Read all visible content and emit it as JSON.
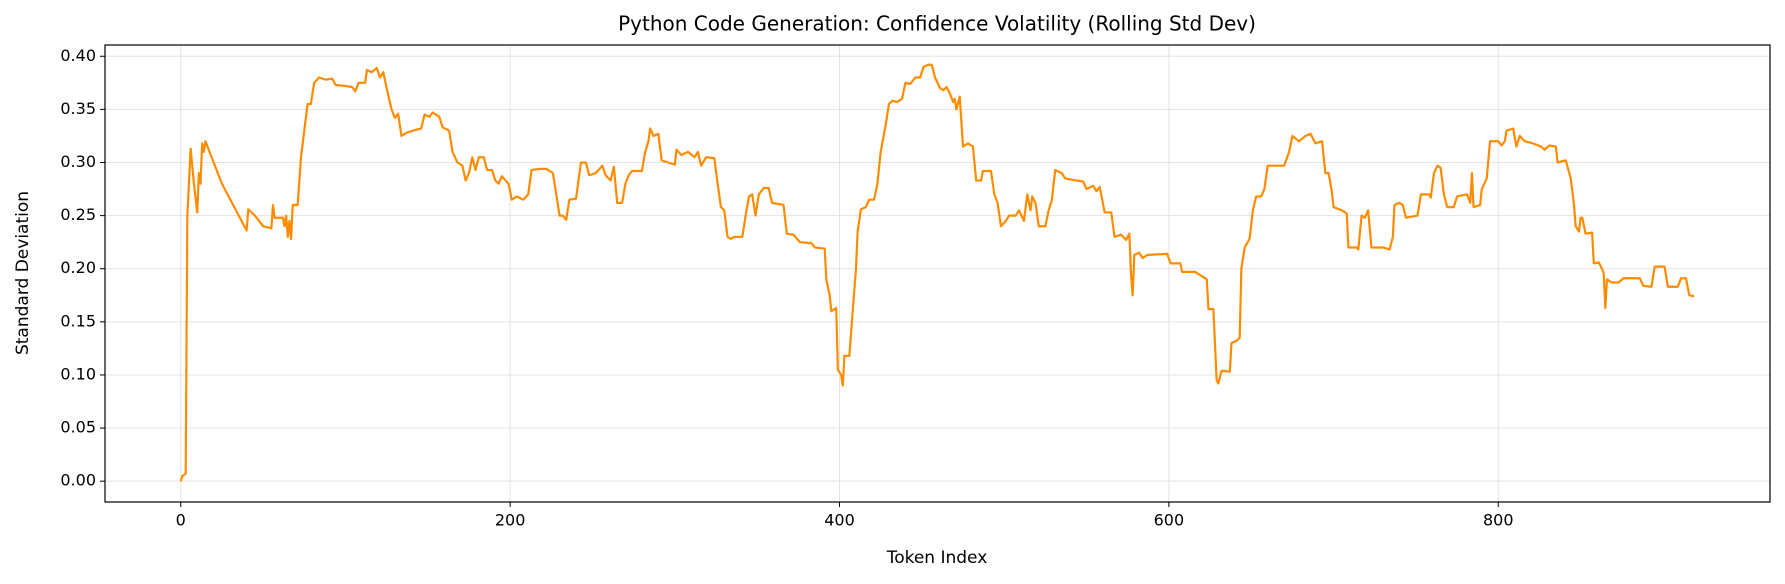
{
  "chart_data": {
    "type": "line",
    "title": "Python Code Generation: Confidence Volatility (Rolling Std Dev)",
    "x_label": "Token Index",
    "y_label": "Standard Deviation",
    "xlim": [
      -46,
      965
    ],
    "ylim": [
      -0.0196,
      0.4106
    ],
    "xticks": [
      0,
      200,
      400,
      600,
      800
    ],
    "yticks": [
      {
        "value": 0,
        "label": "0.00"
      },
      {
        "value": 0.05,
        "label": "0.05"
      },
      {
        "value": 0.1,
        "label": "0.10"
      },
      {
        "value": 0.15,
        "label": "0.15"
      },
      {
        "value": 0.2,
        "label": "0.20"
      },
      {
        "value": 0.25,
        "label": "0.25"
      },
      {
        "value": 0.3,
        "label": "0.30"
      },
      {
        "value": 0.35,
        "label": "0.35"
      },
      {
        "value": 0.4,
        "label": "0.40"
      }
    ],
    "grid": true,
    "x": [
      0,
      1,
      3,
      4,
      6,
      8,
      10,
      11,
      12,
      13,
      14,
      15,
      20,
      25,
      40,
      41,
      45,
      50,
      55,
      56,
      57,
      62,
      63,
      64,
      65,
      66,
      67,
      68,
      71,
      73,
      75,
      77,
      79,
      81,
      84,
      88,
      92,
      94,
      100,
      104,
      106,
      108,
      112,
      113,
      116,
      119,
      121,
      123,
      125,
      128,
      130,
      132,
      134,
      137,
      141,
      146,
      148,
      151,
      153,
      157,
      159,
      163,
      165,
      168,
      171,
      173,
      175,
      177,
      179,
      181,
      184,
      186,
      189,
      191,
      193,
      195,
      199,
      201,
      204,
      208,
      211,
      213,
      218,
      222,
      226,
      228,
      230,
      232,
      234,
      236,
      240,
      243,
      246,
      248,
      252,
      256,
      258,
      261,
      263,
      265,
      268,
      270,
      272,
      274,
      280,
      282,
      284,
      285,
      287,
      290,
      292,
      296,
      300,
      301,
      304,
      308,
      312,
      314,
      316,
      319,
      324,
      326,
      328,
      330,
      332,
      334,
      336,
      341,
      343,
      345,
      347,
      349,
      351,
      354,
      357,
      359,
      366,
      368,
      372,
      376,
      383,
      385,
      391,
      392,
      394,
      395,
      398,
      399,
      401,
      402,
      403,
      406,
      408,
      410,
      411,
      413,
      416,
      418,
      421,
      423,
      425,
      428,
      430,
      432,
      435,
      438,
      440,
      443,
      446,
      449,
      451,
      454,
      456,
      458,
      461,
      463,
      465,
      467,
      469,
      470,
      471,
      473,
      475,
      478,
      481,
      483,
      486,
      487,
      492,
      494,
      496,
      498,
      501,
      503,
      507,
      509,
      512,
      514,
      516,
      517,
      519,
      521,
      525,
      527,
      529,
      530,
      531,
      535,
      537,
      544,
      548,
      550,
      554,
      556,
      558,
      561,
      565,
      567,
      571,
      574,
      576,
      577,
      578,
      579,
      582,
      584,
      587,
      599,
      601,
      607,
      608,
      616,
      620,
      623,
      624,
      627,
      629,
      630,
      632,
      637,
      638,
      641,
      643,
      644,
      646,
      649,
      651,
      653,
      656,
      658,
      660,
      670,
      673,
      675,
      679,
      683,
      686,
      689,
      693,
      695,
      697,
      699,
      700,
      705,
      708,
      709,
      714,
      715,
      717,
      719,
      721,
      723,
      730,
      734,
      736,
      737,
      740,
      742,
      744,
      751,
      753,
      758,
      759,
      761,
      763,
      765,
      767,
      769,
      773,
      775,
      781,
      783,
      784,
      785,
      789,
      790,
      793,
      795,
      800,
      802,
      804,
      805,
      809,
      811,
      813,
      816,
      821,
      826,
      828,
      831,
      835,
      836,
      841,
      844,
      846,
      847,
      849,
      850,
      851,
      853,
      857,
      858,
      861,
      863,
      864,
      865,
      866,
      869,
      873,
      876,
      886,
      888,
      893,
      895,
      901,
      903,
      909,
      911,
      914,
      916,
      919
    ],
    "series": [
      {
        "name": "Rolling Std Dev",
        "color": "#ff8c00",
        "values": [
          0.0,
          0.005,
          0.007,
          0.25,
          0.313,
          0.28,
          0.253,
          0.29,
          0.28,
          0.318,
          0.31,
          0.32,
          0.3,
          0.28,
          0.236,
          0.256,
          0.25,
          0.24,
          0.238,
          0.26,
          0.248,
          0.248,
          0.24,
          0.25,
          0.23,
          0.245,
          0.228,
          0.26,
          0.26,
          0.305,
          0.33,
          0.355,
          0.355,
          0.375,
          0.38,
          0.378,
          0.379,
          0.373,
          0.372,
          0.371,
          0.367,
          0.375,
          0.375,
          0.387,
          0.385,
          0.389,
          0.38,
          0.385,
          0.37,
          0.35,
          0.342,
          0.346,
          0.325,
          0.328,
          0.33,
          0.332,
          0.345,
          0.343,
          0.347,
          0.343,
          0.333,
          0.33,
          0.31,
          0.3,
          0.297,
          0.283,
          0.29,
          0.305,
          0.293,
          0.305,
          0.305,
          0.293,
          0.293,
          0.283,
          0.28,
          0.287,
          0.28,
          0.265,
          0.268,
          0.265,
          0.27,
          0.293,
          0.294,
          0.294,
          0.29,
          0.27,
          0.25,
          0.25,
          0.246,
          0.265,
          0.266,
          0.3,
          0.3,
          0.288,
          0.29,
          0.297,
          0.288,
          0.283,
          0.296,
          0.262,
          0.262,
          0.28,
          0.288,
          0.292,
          0.292,
          0.31,
          0.32,
          0.332,
          0.325,
          0.327,
          0.302,
          0.3,
          0.298,
          0.312,
          0.307,
          0.31,
          0.305,
          0.31,
          0.297,
          0.305,
          0.304,
          0.28,
          0.258,
          0.255,
          0.23,
          0.228,
          0.23,
          0.23,
          0.25,
          0.268,
          0.27,
          0.25,
          0.27,
          0.276,
          0.276,
          0.262,
          0.26,
          0.233,
          0.232,
          0.225,
          0.224,
          0.22,
          0.219,
          0.19,
          0.175,
          0.16,
          0.163,
          0.105,
          0.1,
          0.09,
          0.118,
          0.118,
          0.16,
          0.2,
          0.235,
          0.256,
          0.258,
          0.265,
          0.265,
          0.28,
          0.31,
          0.335,
          0.355,
          0.358,
          0.357,
          0.36,
          0.375,
          0.374,
          0.38,
          0.38,
          0.39,
          0.392,
          0.392,
          0.38,
          0.37,
          0.368,
          0.371,
          0.365,
          0.357,
          0.36,
          0.35,
          0.362,
          0.315,
          0.318,
          0.315,
          0.283,
          0.283,
          0.292,
          0.292,
          0.27,
          0.262,
          0.24,
          0.245,
          0.25,
          0.25,
          0.255,
          0.245,
          0.27,
          0.255,
          0.268,
          0.262,
          0.24,
          0.24,
          0.255,
          0.265,
          0.28,
          0.293,
          0.29,
          0.285,
          0.283,
          0.282,
          0.275,
          0.278,
          0.273,
          0.277,
          0.253,
          0.253,
          0.23,
          0.232,
          0.227,
          0.233,
          0.195,
          0.175,
          0.213,
          0.215,
          0.21,
          0.213,
          0.214,
          0.205,
          0.205,
          0.197,
          0.197,
          0.193,
          0.19,
          0.162,
          0.162,
          0.095,
          0.092,
          0.104,
          0.103,
          0.13,
          0.132,
          0.135,
          0.2,
          0.22,
          0.228,
          0.255,
          0.268,
          0.268,
          0.275,
          0.297,
          0.297,
          0.31,
          0.325,
          0.32,
          0.325,
          0.327,
          0.318,
          0.32,
          0.29,
          0.29,
          0.272,
          0.258,
          0.255,
          0.252,
          0.22,
          0.22,
          0.218,
          0.25,
          0.248,
          0.255,
          0.22,
          0.22,
          0.218,
          0.23,
          0.26,
          0.262,
          0.26,
          0.248,
          0.25,
          0.27,
          0.27,
          0.267,
          0.29,
          0.297,
          0.295,
          0.27,
          0.258,
          0.258,
          0.268,
          0.27,
          0.262,
          0.29,
          0.258,
          0.26,
          0.275,
          0.285,
          0.32,
          0.32,
          0.316,
          0.32,
          0.33,
          0.332,
          0.315,
          0.325,
          0.32,
          0.318,
          0.315,
          0.312,
          0.316,
          0.315,
          0.3,
          0.302,
          0.285,
          0.26,
          0.24,
          0.235,
          0.248,
          0.248,
          0.233,
          0.234,
          0.205,
          0.206,
          0.2,
          0.196,
          0.163,
          0.19,
          0.187,
          0.187,
          0.191,
          0.191,
          0.184,
          0.183,
          0.202,
          0.202,
          0.183,
          0.183,
          0.191,
          0.191,
          0.175,
          0.174
        ]
      }
    ]
  }
}
